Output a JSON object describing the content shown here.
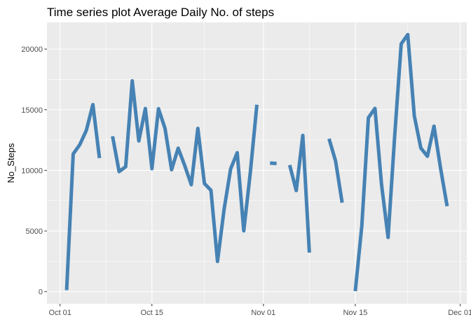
{
  "chart_data": {
    "type": "line",
    "title": "Time series plot Average Daily No. of steps",
    "xlabel": "",
    "ylabel": "No_Steps",
    "xlim": [
      "2012-09-29",
      "2012-12-02"
    ],
    "ylim": [
      -1000,
      22200
    ],
    "x_ticks": [
      {
        "date": "2012-10-01",
        "label": "Oct 01"
      },
      {
        "date": "2012-10-15",
        "label": "Oct 15"
      },
      {
        "date": "2012-11-01",
        "label": "Nov 01"
      },
      {
        "date": "2012-11-15",
        "label": "Nov 15"
      },
      {
        "date": "2012-12-01",
        "label": "Dec 01"
      }
    ],
    "y_ticks": [
      0,
      5000,
      10000,
      15000,
      20000
    ],
    "grid": true,
    "line_color": "#4682b4",
    "panel_background": "#ebebeb",
    "series": [
      {
        "x": [
          "2012-10-01",
          "2012-10-02",
          "2012-10-03",
          "2012-10-04",
          "2012-10-05",
          "2012-10-06",
          "2012-10-07",
          "2012-10-08",
          "2012-10-09",
          "2012-10-10",
          "2012-10-11",
          "2012-10-12",
          "2012-10-13",
          "2012-10-14",
          "2012-10-15",
          "2012-10-16",
          "2012-10-17",
          "2012-10-18",
          "2012-10-19",
          "2012-10-20",
          "2012-10-21",
          "2012-10-22",
          "2012-10-23",
          "2012-10-24",
          "2012-10-25",
          "2012-10-26",
          "2012-10-27",
          "2012-10-28",
          "2012-10-29",
          "2012-10-30",
          "2012-10-31",
          "2012-11-01",
          "2012-11-02",
          "2012-11-03",
          "2012-11-04",
          "2012-11-05",
          "2012-11-06",
          "2012-11-07",
          "2012-11-08",
          "2012-11-09",
          "2012-11-10",
          "2012-11-11",
          "2012-11-12",
          "2012-11-13",
          "2012-11-14",
          "2012-11-15",
          "2012-11-16",
          "2012-11-17",
          "2012-11-18",
          "2012-11-19",
          "2012-11-20",
          "2012-11-21",
          "2012-11-22",
          "2012-11-23",
          "2012-11-24",
          "2012-11-25",
          "2012-11-26",
          "2012-11-27",
          "2012-11-28",
          "2012-11-29",
          "2012-11-30"
        ],
        "values": [
          null,
          126,
          11352,
          12116,
          13294,
          15420,
          11015,
          null,
          12811,
          9900,
          10304,
          17382,
          12426,
          15098,
          10139,
          15084,
          13452,
          10056,
          11829,
          10395,
          8821,
          13460,
          8918,
          8355,
          2492,
          6778,
          10119,
          11458,
          5018,
          9819,
          15414,
          null,
          10600,
          10571,
          null,
          10439,
          8334,
          12883,
          3219,
          null,
          null,
          12608,
          10765,
          7336,
          null,
          41,
          5441,
          14339,
          15110,
          8841,
          4472,
          12787,
          20427,
          21194,
          14478,
          11834,
          11162,
          13646,
          10183,
          7047,
          null
        ]
      }
    ]
  }
}
